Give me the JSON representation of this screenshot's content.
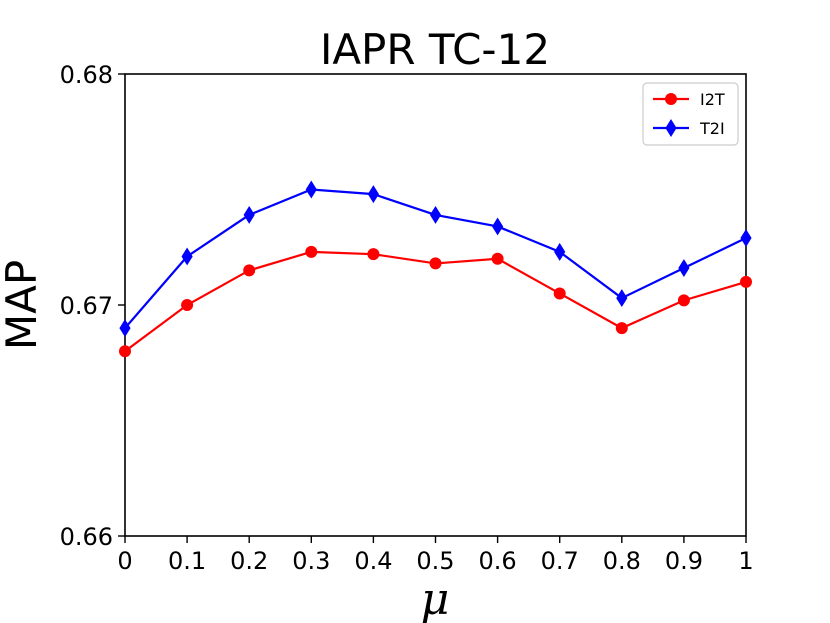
{
  "chart_data": {
    "type": "line",
    "title": "IAPR TC-12",
    "xlabel": "μ",
    "ylabel": "MAP",
    "x": [
      0,
      0.1,
      0.2,
      0.3,
      0.4,
      0.5,
      0.6,
      0.7,
      0.8,
      0.9,
      1
    ],
    "x_tick_labels": [
      "0",
      "0.1",
      "0.2",
      "0.3",
      "0.4",
      "0.5",
      "0.6",
      "0.7",
      "0.8",
      "0.9",
      "1"
    ],
    "y_ticks": [
      0.66,
      0.67,
      0.68
    ],
    "y_tick_labels": [
      "0.66",
      "0.67",
      "0.68"
    ],
    "xlim": [
      0,
      1
    ],
    "ylim": [
      0.66,
      0.68
    ],
    "grid": false,
    "legend_position": "top-right",
    "series": [
      {
        "name": "I2T",
        "color": "#ff0000",
        "marker": "circle",
        "values": [
          0.668,
          0.67,
          0.6715,
          0.6723,
          0.6722,
          0.6718,
          0.672,
          0.6705,
          0.669,
          0.6702,
          0.671
        ]
      },
      {
        "name": "T2I",
        "color": "#0000ff",
        "marker": "diamond",
        "values": [
          0.669,
          0.6721,
          0.6739,
          0.675,
          0.6748,
          0.6739,
          0.6734,
          0.6723,
          0.6703,
          0.6716,
          0.6729
        ]
      }
    ]
  }
}
